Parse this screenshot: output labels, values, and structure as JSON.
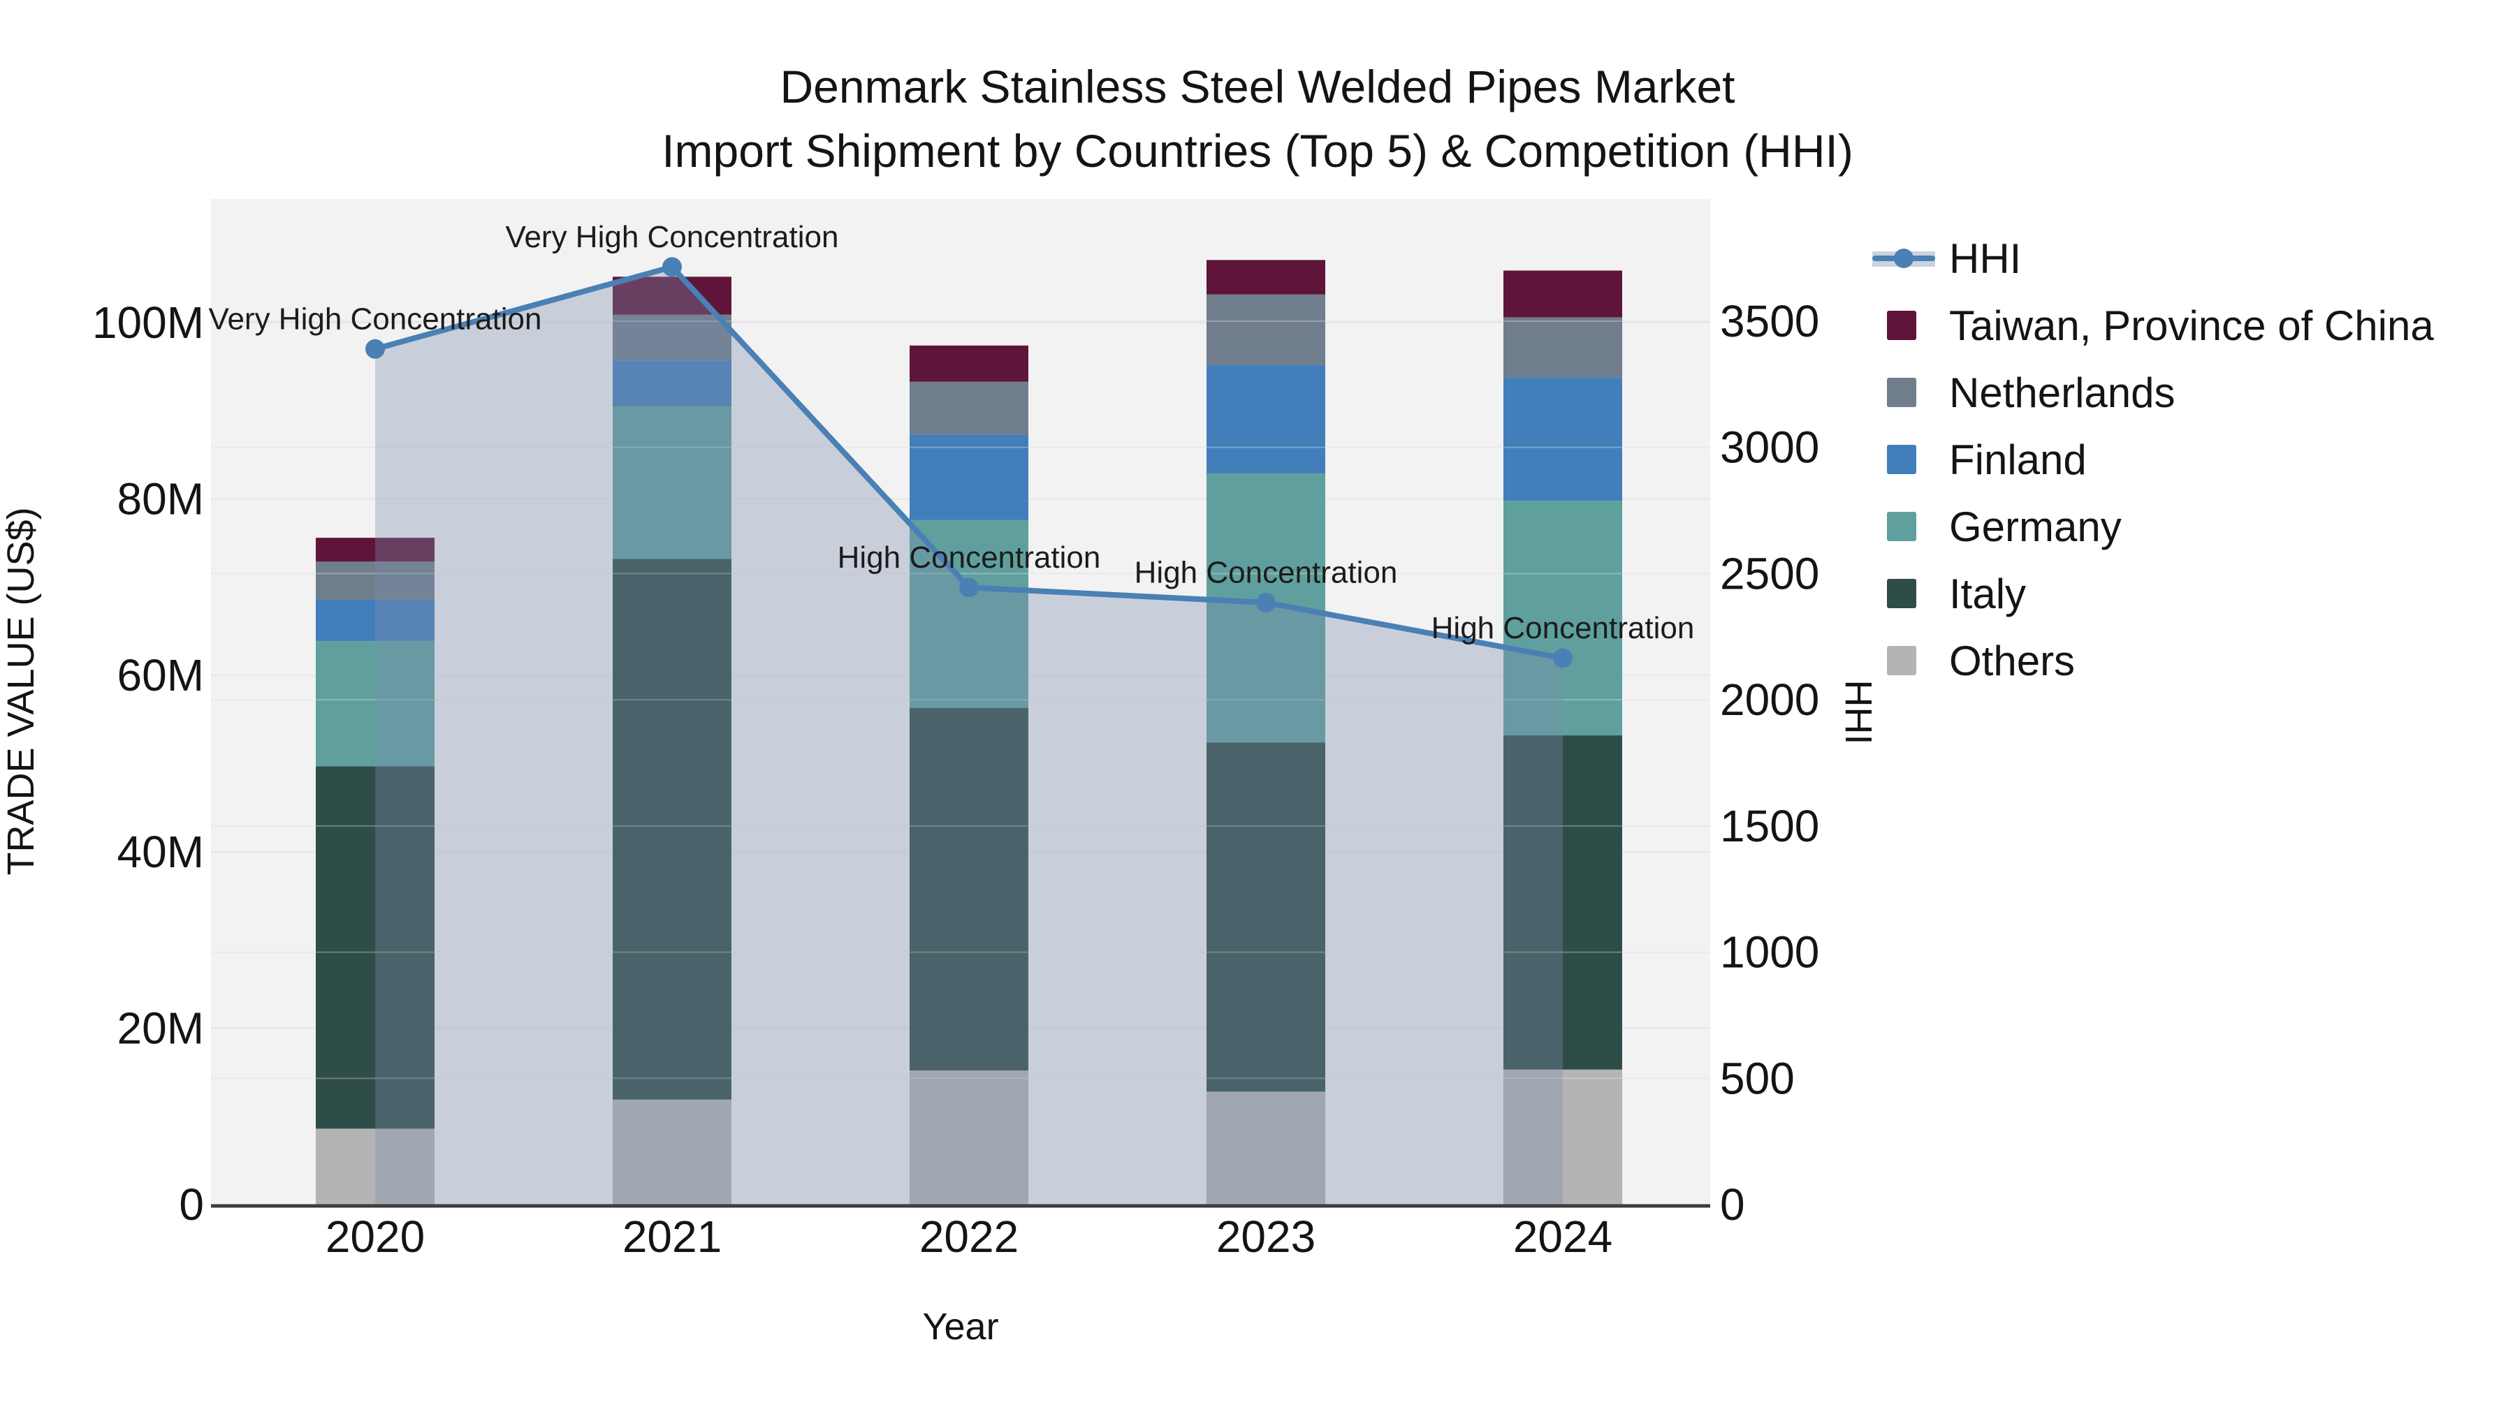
{
  "title": {
    "line1": "Denmark Stainless Steel Welded Pipes Market",
    "line2": "Import Shipment by Countries (Top 5) & Competition (HHI)"
  },
  "axes": {
    "x": {
      "title": "Year"
    },
    "y_left": {
      "title": "TRADE VALUE (US$)",
      "tick_labels": [
        "0",
        "20M",
        "40M",
        "60M",
        "80M",
        "100M"
      ],
      "tick_values": [
        0,
        20,
        40,
        60,
        80,
        100
      ]
    },
    "y_right": {
      "title": "HHI",
      "tick_labels": [
        "0",
        "500",
        "1000",
        "1500",
        "2000",
        "2500",
        "3000",
        "3500"
      ],
      "tick_values": [
        0,
        500,
        1000,
        1500,
        2000,
        2500,
        3000,
        3500
      ]
    }
  },
  "chart_data": {
    "type": "combo: stacked bar (trade value, US$ millions) + line (HHI, right axis)",
    "categories": [
      "2020",
      "2021",
      "2022",
      "2023",
      "2024"
    ],
    "bar_value_unit": "millions US$",
    "stack_series_bottom_to_top": [
      {
        "name": "Others",
        "color": "#b4b4b4",
        "values": [
          8.6,
          11.9,
          15.2,
          12.8,
          15.3
        ]
      },
      {
        "name": "Italy",
        "color": "#2e4c48",
        "values": [
          41.1,
          61.3,
          41.1,
          39.6,
          37.9
        ]
      },
      {
        "name": "Germany",
        "color": "#5fa09e",
        "values": [
          14.2,
          17.3,
          21.3,
          30.5,
          26.6
        ]
      },
      {
        "name": "Finland",
        "color": "#427fba",
        "values": [
          4.7,
          5.2,
          9.7,
          12.3,
          14.0
        ]
      },
      {
        "name": "Netherlands",
        "color": "#6f7d8d",
        "values": [
          4.3,
          5.2,
          6.0,
          8.0,
          6.8
        ]
      },
      {
        "name": "Taiwan, Province of China",
        "color": "#5f1539",
        "values": [
          2.7,
          4.3,
          4.1,
          3.9,
          5.3
        ]
      }
    ],
    "bar_totals": [
      75.6,
      105.2,
      97.4,
      107.1,
      105.9
    ],
    "line_series": {
      "name": "HHI",
      "color": "#4a80b4",
      "area_fill": "rgba(125,142,172,0.35)",
      "values": [
        3390,
        3715,
        2445,
        2385,
        2165
      ]
    },
    "point_annotations": [
      "Very High Concentration",
      "Very High Concentration",
      "High Concentration",
      "High Concentration",
      "High Concentration"
    ],
    "axis_ranges": {
      "y_left_max_m": 114,
      "y_right_max": 3985
    },
    "grid": true,
    "legend_position": "right"
  },
  "legend": {
    "items": [
      {
        "label": "HHI",
        "type": "line",
        "color": "#4a80b4"
      },
      {
        "label": "Taiwan, Province of China",
        "type": "swatch",
        "color": "#5f1539"
      },
      {
        "label": "Netherlands",
        "type": "swatch",
        "color": "#6f7d8d"
      },
      {
        "label": "Finland",
        "type": "swatch",
        "color": "#427fba"
      },
      {
        "label": "Germany",
        "type": "swatch",
        "color": "#5fa09e"
      },
      {
        "label": "Italy",
        "type": "swatch",
        "color": "#2e4c48"
      },
      {
        "label": "Others",
        "type": "swatch",
        "color": "#b4b4b4"
      }
    ]
  },
  "colors": {
    "page_background": "#ffffff",
    "plot_background": "#f2f2f3",
    "gridline": "#e6e6ea",
    "axis_line": "#3d3d3d",
    "text": "#141414"
  }
}
